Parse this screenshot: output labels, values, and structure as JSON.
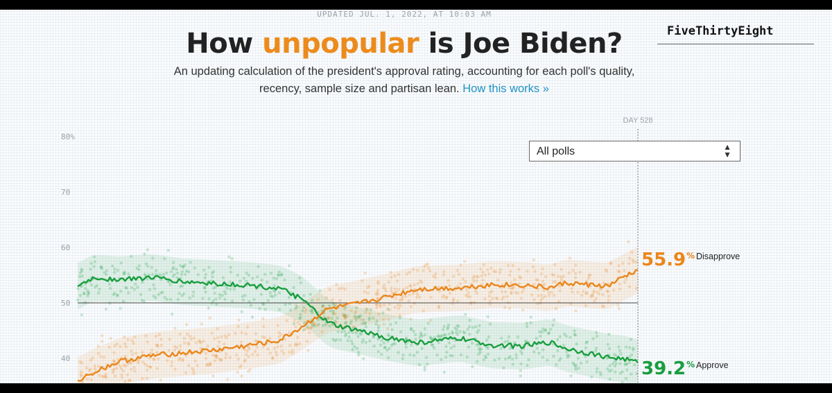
{
  "header": {
    "updated": "UPDATED JUL. 1, 2022, AT 10:03 AM",
    "title_pre": "How ",
    "title_highlight": "unpopular",
    "title_post": " is Joe Biden?",
    "brand": "FiveThirtyEight",
    "subtitle_line1": "An updating calculation of the president's approval rating, accounting for each poll's quality,",
    "subtitle_line2": "recency, sample size and partisan lean. ",
    "subtitle_link": "How this works »"
  },
  "filter": {
    "label": "All polls",
    "arrow": "▲▼"
  },
  "colors": {
    "approve": "#189e3e",
    "disapprove": "#ea861a",
    "headline_highlight": "#ec8b1c",
    "link": "#1f93c4"
  },
  "current": {
    "day_label": "DAY 528",
    "disapprove_value": "55.9",
    "disapprove_label": "Disapprove",
    "approve_value": "39.2",
    "approve_label": "Approve",
    "percent_sign": "%"
  },
  "chart_data": {
    "type": "line",
    "ylim": [
      35,
      80
    ],
    "xlim": [
      0,
      528
    ],
    "y_ticks": [
      40,
      50,
      60,
      70,
      80
    ],
    "y_tick_labels": [
      "40",
      "50",
      "60",
      "70",
      "80%"
    ],
    "reference_line": 50,
    "grid": false,
    "x": [
      0,
      15,
      40,
      70,
      100,
      130,
      160,
      190,
      210,
      225,
      235,
      245,
      260,
      290,
      320,
      360,
      390,
      420,
      445,
      460,
      480,
      500,
      515,
      528
    ],
    "series": [
      {
        "name": "Approve",
        "values": [
          53,
          54.5,
          54.2,
          54.6,
          53.8,
          53.5,
          53.2,
          52.6,
          50.8,
          48.3,
          46.5,
          45.8,
          45.2,
          43.8,
          42.8,
          43.6,
          42.4,
          42.2,
          42.9,
          41.8,
          41.0,
          40.2,
          39.9,
          39.2
        ]
      },
      {
        "name": "Disapprove",
        "values": [
          36,
          37.5,
          39.5,
          40.5,
          41,
          41.5,
          42.3,
          43.2,
          45.5,
          47.5,
          48.8,
          49.2,
          49.7,
          51,
          52.5,
          52.7,
          53.3,
          53.2,
          52.7,
          53.6,
          53.3,
          53.0,
          54.7,
          55.9
        ]
      }
    ]
  }
}
